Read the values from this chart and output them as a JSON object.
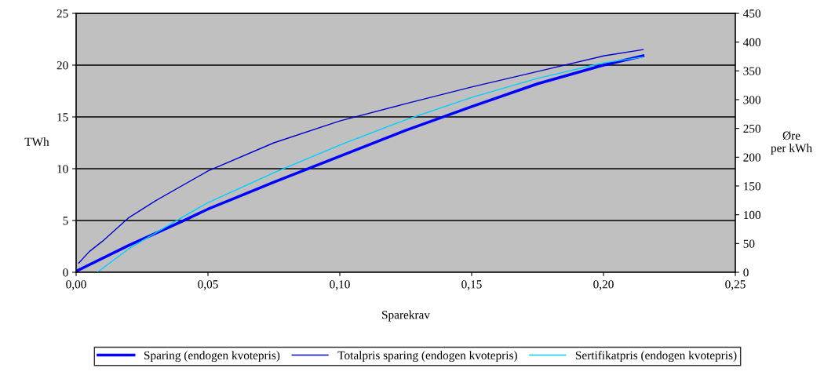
{
  "chart_data": {
    "type": "line",
    "xlabel": "Sparekrav",
    "ylabel": "TWh",
    "y2label": "Øre\nper kWh",
    "xlim": [
      0,
      0.25
    ],
    "xticks": [
      {
        "value": 0,
        "label": "0,00"
      },
      {
        "value": 0.05,
        "label": "0,05"
      },
      {
        "value": 0.1,
        "label": "0,10"
      },
      {
        "value": 0.15,
        "label": "0,15"
      },
      {
        "value": 0.2,
        "label": "0,20"
      },
      {
        "value": 0.25,
        "label": "0,25"
      }
    ],
    "ylim": [
      0,
      25
    ],
    "yticks": [
      0,
      5,
      10,
      15,
      20,
      25
    ],
    "y2lim": [
      0,
      450
    ],
    "y2ticks": [
      0,
      50,
      100,
      150,
      200,
      250,
      300,
      350,
      400,
      450
    ],
    "grid": "y",
    "legend": "bottom",
    "marker": "none",
    "line_style": "solid",
    "series": [
      {
        "name": "Sparing (endogen kvotepris)",
        "color": "#0000ff",
        "x": [
          0,
          0.02,
          0.04,
          0.05,
          0.075,
          0.1,
          0.125,
          0.15,
          0.175,
          0.2,
          0.215
        ],
        "values": [
          0.1,
          2.6,
          4.9,
          6.1,
          8.7,
          11.2,
          13.7,
          16.0,
          18.2,
          20.0,
          20.9
        ]
      },
      {
        "name": "Totalpris sparing (endogen kvotepris)",
        "color": "#0000cc",
        "axis": "y2",
        "x": [
          0.001,
          0.005,
          0.01,
          0.02,
          0.03,
          0.05,
          0.075,
          0.1,
          0.125,
          0.15,
          0.175,
          0.2,
          0.215
        ],
        "values": [
          16,
          36,
          54,
          95,
          124,
          176,
          225,
          263,
          293,
          322,
          349,
          376,
          387
        ]
      },
      {
        "name": "Sertifikatpris (endogen kvotepris)",
        "color": "#00ccff",
        "axis": "y2",
        "x": [
          0.008,
          0.02,
          0.04,
          0.05,
          0.075,
          0.1,
          0.125,
          0.15,
          0.175,
          0.2,
          0.215
        ],
        "values": [
          0,
          41,
          95,
          121,
          173,
          221,
          265,
          304,
          337,
          364,
          374
        ]
      }
    ]
  }
}
